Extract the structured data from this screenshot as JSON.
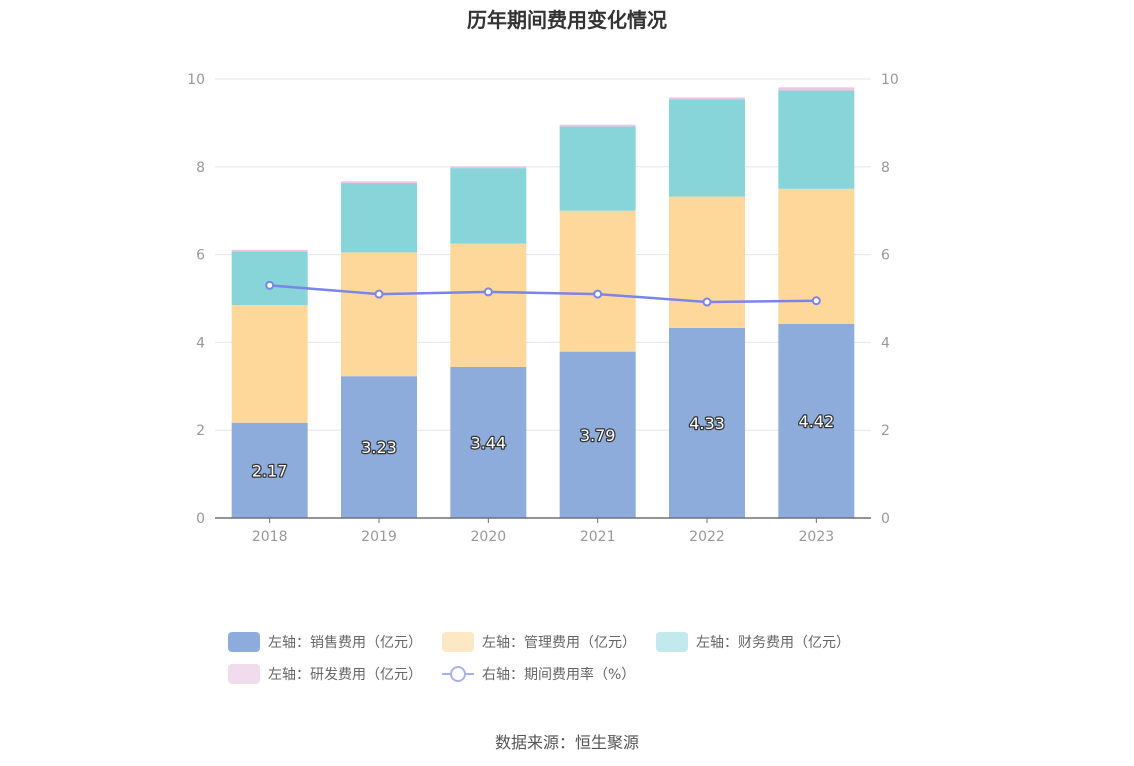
{
  "colors": {
    "sales": "#8eacdb",
    "admin": "#fed89b",
    "finance": "#87d5d9",
    "rd": "#f1c5e2",
    "rate": "#7b84e8",
    "grid": "#e3e6f3",
    "axis_text": "#999999",
    "bar_label_fill": "#ffffff",
    "bar_label_stroke": "#333333"
  },
  "legend": [
    {
      "label": "左轴：销售费用（亿元）",
      "type": "bar",
      "color": "#8eacdb"
    },
    {
      "label": "左轴：管理费用（亿元）",
      "type": "bar",
      "color": "#fde8c6"
    },
    {
      "label": "左轴：财务费用（亿元）",
      "type": "bar",
      "color": "#c2e9eb"
    },
    {
      "label": "左轴：研发费用（亿元）",
      "type": "bar",
      "color": "#f1dcee"
    },
    {
      "label": "右轴：期间费用率（%）",
      "type": "line",
      "color": "#aab0ee"
    }
  ],
  "source": "数据来源：恒生聚源",
  "chart_data": {
    "type": "bar",
    "stacked": true,
    "title": "历年期间费用变化情况",
    "categories": [
      "2018",
      "2019",
      "2020",
      "2021",
      "2022",
      "2023"
    ],
    "y_left": {
      "min": 0,
      "max": 10,
      "ticks": [
        "0",
        "2",
        "4",
        "6",
        "8",
        "10"
      ]
    },
    "y_right": {
      "min": 0,
      "max": 10,
      "ticks": [
        "0",
        "2",
        "4",
        "6",
        "8",
        "10"
      ]
    },
    "grid": true,
    "legend_position": "bottom",
    "series": [
      {
        "name": "左轴：销售费用（亿元）",
        "key": "sales",
        "axis": "left",
        "type": "bar",
        "values": [
          2.17,
          3.23,
          3.44,
          3.79,
          4.33,
          4.42
        ],
        "labels": [
          "2.17",
          "3.23",
          "3.44",
          "3.79",
          "4.33",
          "4.42"
        ]
      },
      {
        "name": "左轴：管理费用（亿元）",
        "key": "admin",
        "axis": "left",
        "type": "bar",
        "values": [
          2.68,
          2.82,
          2.81,
          3.21,
          2.99,
          3.08
        ]
      },
      {
        "name": "左轴：财务费用（亿元）",
        "key": "finance",
        "axis": "left",
        "type": "bar",
        "values": [
          1.22,
          1.58,
          1.72,
          1.92,
          2.22,
          2.24
        ]
      },
      {
        "name": "左轴：研发费用（亿元）",
        "key": "rd",
        "axis": "left",
        "type": "bar",
        "values": [
          0.04,
          0.04,
          0.04,
          0.04,
          0.04,
          0.07
        ]
      },
      {
        "name": "右轴：期间费用率（%）",
        "key": "rate",
        "axis": "right",
        "type": "line",
        "values": [
          5.3,
          5.1,
          5.15,
          5.1,
          4.92,
          4.95
        ]
      }
    ]
  }
}
